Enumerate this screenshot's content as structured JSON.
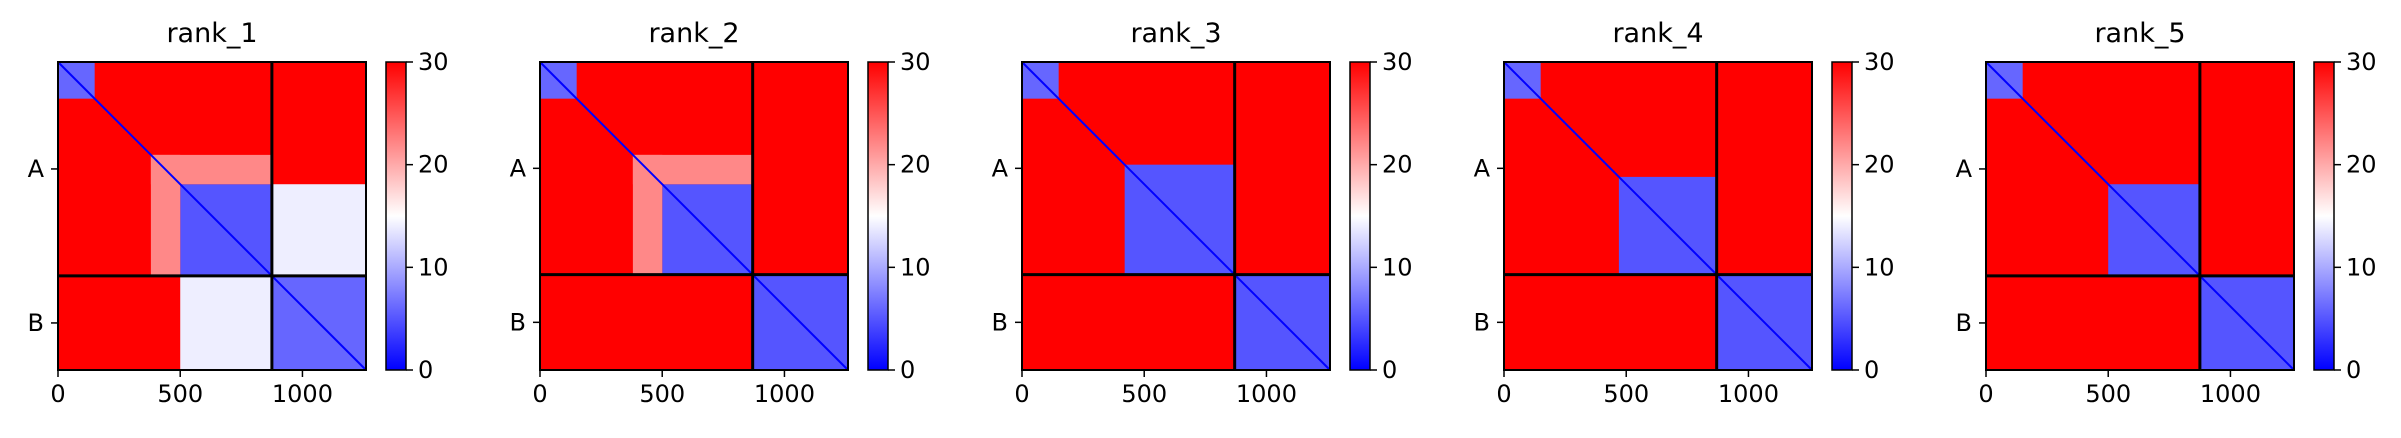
{
  "chart_data": [
    {
      "type": "heatmap",
      "title": "rank_1",
      "x_ticks": [
        0,
        500,
        1000
      ],
      "xlim": [
        0,
        1260
      ],
      "chain_labels": [
        "A",
        "B"
      ],
      "chain_boundary": 875,
      "colorbar": {
        "min": 0,
        "max": 30,
        "ticks": [
          0,
          10,
          20,
          30
        ],
        "colormap": "bwr"
      },
      "regions": [
        {
          "x": [
            0,
            150
          ],
          "y": [
            0,
            150
          ],
          "value": 6
        },
        {
          "x": [
            500,
            875
          ],
          "y": [
            500,
            875
          ],
          "value": 5
        },
        {
          "x": [
            875,
            1260
          ],
          "y": [
            875,
            1260
          ],
          "value": 6
        },
        {
          "x": [
            500,
            875
          ],
          "y": [
            875,
            1260
          ],
          "value": 14
        },
        {
          "x": [
            875,
            1260
          ],
          "y": [
            500,
            875
          ],
          "value": 14
        },
        {
          "x": [
            380,
            500
          ],
          "y": [
            380,
            875
          ],
          "value": 22
        },
        {
          "x": [
            380,
            875
          ],
          "y": [
            380,
            500
          ],
          "value": 22
        }
      ]
    },
    {
      "type": "heatmap",
      "title": "rank_2",
      "x_ticks": [
        0,
        500,
        1000
      ],
      "xlim": [
        0,
        1260
      ],
      "chain_labels": [
        "A",
        "B"
      ],
      "chain_boundary": 870,
      "colorbar": {
        "min": 0,
        "max": 30,
        "ticks": [
          0,
          10,
          20,
          30
        ],
        "colormap": "bwr"
      },
      "regions": [
        {
          "x": [
            0,
            150
          ],
          "y": [
            0,
            150
          ],
          "value": 6
        },
        {
          "x": [
            500,
            870
          ],
          "y": [
            500,
            870
          ],
          "value": 5
        },
        {
          "x": [
            870,
            1260
          ],
          "y": [
            870,
            1260
          ],
          "value": 5
        },
        {
          "x": [
            380,
            500
          ],
          "y": [
            380,
            870
          ],
          "value": 22
        },
        {
          "x": [
            380,
            870
          ],
          "y": [
            380,
            500
          ],
          "value": 22
        }
      ]
    },
    {
      "type": "heatmap",
      "title": "rank_3",
      "x_ticks": [
        0,
        500,
        1000
      ],
      "xlim": [
        0,
        1260
      ],
      "chain_labels": [
        "A",
        "B"
      ],
      "chain_boundary": 870,
      "colorbar": {
        "min": 0,
        "max": 30,
        "ticks": [
          0,
          10,
          20,
          30
        ],
        "colormap": "bwr"
      },
      "regions": [
        {
          "x": [
            0,
            150
          ],
          "y": [
            0,
            150
          ],
          "value": 6
        },
        {
          "x": [
            420,
            870
          ],
          "y": [
            420,
            870
          ],
          "value": 5
        },
        {
          "x": [
            870,
            1260
          ],
          "y": [
            870,
            1260
          ],
          "value": 5
        }
      ]
    },
    {
      "type": "heatmap",
      "title": "rank_4",
      "x_ticks": [
        0,
        500,
        1000
      ],
      "xlim": [
        0,
        1260
      ],
      "chain_labels": [
        "A",
        "B"
      ],
      "chain_boundary": 870,
      "colorbar": {
        "min": 0,
        "max": 30,
        "ticks": [
          0,
          10,
          20,
          30
        ],
        "colormap": "bwr"
      },
      "regions": [
        {
          "x": [
            0,
            150
          ],
          "y": [
            0,
            150
          ],
          "value": 6
        },
        {
          "x": [
            470,
            870
          ],
          "y": [
            470,
            870
          ],
          "value": 5
        },
        {
          "x": [
            870,
            1260
          ],
          "y": [
            870,
            1260
          ],
          "value": 5
        }
      ]
    },
    {
      "type": "heatmap",
      "title": "rank_5",
      "x_ticks": [
        0,
        500,
        1000
      ],
      "xlim": [
        0,
        1260
      ],
      "chain_labels": [
        "A",
        "B"
      ],
      "chain_boundary": 875,
      "colorbar": {
        "min": 0,
        "max": 30,
        "ticks": [
          0,
          10,
          20,
          30
        ],
        "colormap": "bwr"
      },
      "regions": [
        {
          "x": [
            0,
            150
          ],
          "y": [
            0,
            150
          ],
          "value": 6
        },
        {
          "x": [
            500,
            875
          ],
          "y": [
            500,
            875
          ],
          "value": 5
        },
        {
          "x": [
            875,
            1260
          ],
          "y": [
            875,
            1260
          ],
          "value": 5
        }
      ]
    }
  ]
}
